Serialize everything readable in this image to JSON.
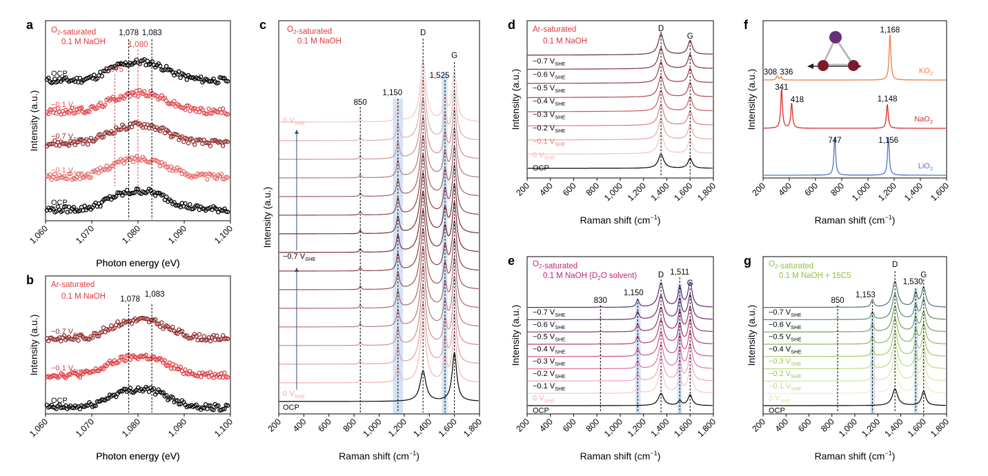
{
  "chart_data": [
    {
      "panel": "a",
      "type": "scatter",
      "annotations": [
        "O2-saturated",
        "0.1 M NaOH"
      ],
      "xlabel": "Photon energy (eV)",
      "ylabel": "Intensity (a.u.)",
      "xlim": [
        1060,
        1100
      ],
      "xticks": [
        "1,060",
        "1,070",
        "1,080",
        "1,090",
        "1,100"
      ],
      "peak_labels": [
        {
          "x": 1078,
          "text": "1,078"
        },
        {
          "x": 1083,
          "text": "1,083"
        },
        {
          "x": 1080,
          "text": "1,080"
        },
        {
          "x": 1075,
          "text": "1,075"
        }
      ],
      "series": [
        {
          "name": "OCP",
          "color": "#000000"
        },
        {
          "name": "−0.1 V",
          "sub": "SHE",
          "color": "#e0474c"
        },
        {
          "name": "−0.7 V",
          "sub": "SHE",
          "color": "#8f2a2a"
        },
        {
          "name": "−0.1 V",
          "sub": "SHE",
          "color": "#e76a6a"
        },
        {
          "name": "OCP",
          "color": "#000000"
        }
      ]
    },
    {
      "panel": "b",
      "type": "scatter",
      "annotations": [
        "Ar-saturated",
        "0.1 M NaOH"
      ],
      "xlabel": "Photon energy (eV)",
      "ylabel": "Intensity (a.u.)",
      "xlim": [
        1060,
        1100
      ],
      "xticks": [
        "1,060",
        "1,070",
        "1,080",
        "1,090",
        "1,100"
      ],
      "peak_labels": [
        {
          "x": 1078,
          "text": "1,078"
        },
        {
          "x": 1083,
          "text": "1,083"
        }
      ],
      "series": [
        {
          "name": "−0.7 V",
          "sub": "SHE",
          "color": "#8f2a2a"
        },
        {
          "name": "−0.1 V",
          "sub": "SHE",
          "color": "#e0363c"
        },
        {
          "name": "OCP",
          "color": "#000000"
        }
      ]
    },
    {
      "panel": "c",
      "type": "line",
      "annotations": [
        "O2-saturated",
        "0.1 M NaOH"
      ],
      "xlabel": "Raman shift (cm−1)",
      "ylabel": "Intensity (a.u.)",
      "xlim": [
        200,
        1800
      ],
      "xticks": [
        "200",
        "400",
        "600",
        "800",
        "1,000",
        "1,200",
        "1,400",
        "1,600",
        "1,800"
      ],
      "peak_labels": [
        {
          "x": 850,
          "text": "850"
        },
        {
          "x": 1150,
          "text": "1,150"
        },
        {
          "x": 1525,
          "text": "1,525"
        },
        {
          "x": 1350,
          "text": "D"
        },
        {
          "x": 1600,
          "text": "G"
        }
      ],
      "series_labels": [
        "0 V",
        "−0.7 V",
        "0 V",
        "OCP"
      ],
      "n_traces": 16
    },
    {
      "panel": "d",
      "type": "line",
      "annotations": [
        "Ar-saturated",
        "0.1 M NaOH"
      ],
      "xlabel": "Raman shift (cm−1)",
      "ylabel": "Intensity (a.u.)",
      "xlim": [
        200,
        1800
      ],
      "xticks": [
        "200",
        "400",
        "600",
        "800",
        "1,000",
        "1,200",
        "1,400",
        "1,600",
        "1,800"
      ],
      "peak_labels": [
        {
          "x": 1350,
          "text": "D"
        },
        {
          "x": 1600,
          "text": "G"
        }
      ],
      "series": [
        {
          "name": "−0.7 V",
          "sub": "SHE"
        },
        {
          "name": "−0.6 V",
          "sub": "SHE"
        },
        {
          "name": "−0.5 V",
          "sub": "SHE"
        },
        {
          "name": "−0.4 V",
          "sub": "SHE"
        },
        {
          "name": "−0.3 V",
          "sub": "SHE"
        },
        {
          "name": "−0.2 V",
          "sub": "SHE"
        },
        {
          "name": "−0.1 V",
          "sub": "SHE"
        },
        {
          "name": "0 V",
          "sub": "SHE"
        },
        {
          "name": "OCP"
        }
      ]
    },
    {
      "panel": "e",
      "type": "line",
      "annotations": [
        "O2-saturated",
        "0.1 M NaOH (D2O solvent)"
      ],
      "xlabel": "Raman shift (cm−1)",
      "ylabel": "Intensity (a.u.)",
      "xlim": [
        200,
        1800
      ],
      "xticks": [
        "200",
        "400",
        "600",
        "800",
        "1,000",
        "1,200",
        "1,400",
        "1,600",
        "1,800"
      ],
      "peak_labels": [
        {
          "x": 830,
          "text": "830"
        },
        {
          "x": 1150,
          "text": "1,150"
        },
        {
          "x": 1511,
          "text": "1,511"
        },
        {
          "x": 1350,
          "text": "D"
        },
        {
          "x": 1600,
          "text": "G"
        }
      ],
      "series": [
        {
          "name": "−0.7 V",
          "sub": "SHE"
        },
        {
          "name": "−0.6 V",
          "sub": "SHE"
        },
        {
          "name": "−0.5 V",
          "sub": "SHE"
        },
        {
          "name": "−0.4 V",
          "sub": "SHE"
        },
        {
          "name": "−0.3 V",
          "sub": "SHE"
        },
        {
          "name": "−0.2 V",
          "sub": "SHE"
        },
        {
          "name": "−0.1 V",
          "sub": "SHE"
        },
        {
          "name": "0 V",
          "sub": "SHE"
        },
        {
          "name": "OCP"
        }
      ]
    },
    {
      "panel": "f",
      "type": "line",
      "xlabel": "Raman shift (cm−1)",
      "ylabel": "Intensity (a.u.)",
      "xlim": [
        200,
        1600
      ],
      "xticks": [
        "200",
        "400",
        "600",
        "800",
        "1,000",
        "1,200",
        "1,400",
        "1,600"
      ],
      "series": [
        {
          "name": "KO2",
          "color": "#f07b3f",
          "peaks": [
            308,
            336,
            1168
          ],
          "peak_text": [
            "308",
            "336",
            "1,168"
          ]
        },
        {
          "name": "NaO2",
          "color": "#d82b2b",
          "peaks": [
            341,
            418,
            1148
          ],
          "peak_text": [
            "341",
            "418",
            "1,148"
          ]
        },
        {
          "name": "LiO2",
          "color": "#4a74c0",
          "peaks": [
            747,
            1156
          ],
          "peak_text": [
            "747",
            "1,156"
          ]
        }
      ]
    },
    {
      "panel": "g",
      "type": "line",
      "annotations": [
        "O2-saturated",
        "0.1 M NaOH + 15C5"
      ],
      "xlabel": "Raman shift (cm−1)",
      "ylabel": "Intensity (a.u.)",
      "xlim": [
        200,
        1800
      ],
      "xticks": [
        "200",
        "400",
        "600",
        "800",
        "1,000",
        "1,200",
        "1,400",
        "1,600",
        "1,800"
      ],
      "peak_labels": [
        {
          "x": 850,
          "text": "850"
        },
        {
          "x": 1153,
          "text": "1,153"
        },
        {
          "x": 1530,
          "text": "1,530"
        },
        {
          "x": 1350,
          "text": "D"
        },
        {
          "x": 1600,
          "text": "G"
        }
      ],
      "series": [
        {
          "name": "−0.7 V",
          "sub": "SHE"
        },
        {
          "name": "−0.6 V",
          "sub": "SHE"
        },
        {
          "name": "−0.5 V",
          "sub": "SHE"
        },
        {
          "name": "−0.4 V",
          "sub": "SHE"
        },
        {
          "name": "−0.3 V",
          "sub": "SHE"
        },
        {
          "name": "−0.2 V",
          "sub": "SHE"
        },
        {
          "name": "−0.1 V",
          "sub": "SHE"
        },
        {
          "name": "0 V",
          "sub": "SHE"
        },
        {
          "name": "OCP"
        }
      ]
    }
  ]
}
